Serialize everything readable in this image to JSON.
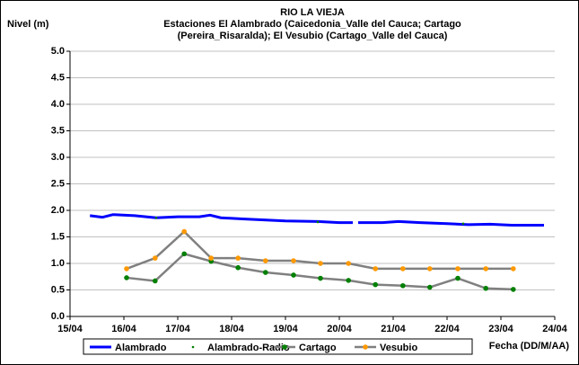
{
  "chart_data": {
    "type": "line",
    "title": "RIO LA VIEJA",
    "subtitle": [
      "Estaciones El Alambrado (Caicedonia_Valle del Cauca; Cartago",
      "(Pereira_Risaralda);  El Vesubio (Cartago_Valle del Cauca)"
    ],
    "y_label": "Nivel (m)",
    "x_label": "Fecha (DD/M/AA)",
    "xlim": [
      15,
      24
    ],
    "xticks": [
      {
        "value": 15,
        "label": "15/04"
      },
      {
        "value": 16,
        "label": "16/04"
      },
      {
        "value": 17,
        "label": "17/04"
      },
      {
        "value": 18,
        "label": "18/04"
      },
      {
        "value": 19,
        "label": "19/04"
      },
      {
        "value": 20,
        "label": "20/04"
      },
      {
        "value": 21,
        "label": "21/04"
      },
      {
        "value": 22,
        "label": "22/04"
      },
      {
        "value": 23,
        "label": "23/04"
      },
      {
        "value": 24,
        "label": "24/04"
      }
    ],
    "ylim": [
      0,
      5
    ],
    "yticks": [
      {
        "value": 0,
        "label": "0.0"
      },
      0.5,
      {
        "value": 1,
        "label": "1.0"
      },
      1.5,
      {
        "value": 2,
        "label": "2.0"
      },
      2.5,
      {
        "value": 3,
        "label": "3.0"
      },
      3.5,
      {
        "value": 4,
        "label": "4.0"
      },
      4.5,
      {
        "value": 5,
        "label": "5.0"
      }
    ],
    "grid": true,
    "legend": "bottom",
    "series": [
      {
        "name": "Alambrado",
        "color": "#0000ff",
        "line": true,
        "marker": false,
        "x": [
          15.37,
          15.6,
          15.8,
          16.2,
          16.6,
          17.0,
          17.4,
          17.6,
          17.8,
          18.2,
          18.6,
          19.0,
          19.6,
          20.0,
          20.25,
          20.3,
          20.35,
          20.8,
          21.1,
          21.5,
          22.0,
          22.4,
          22.8,
          23.2,
          23.8
        ],
        "values": [
          1.9,
          1.87,
          1.92,
          1.9,
          1.86,
          1.88,
          1.88,
          1.91,
          1.86,
          1.84,
          1.82,
          1.8,
          1.79,
          1.77,
          1.77,
          null,
          1.77,
          1.77,
          1.79,
          1.77,
          1.75,
          1.73,
          1.74,
          1.72,
          1.72
        ]
      },
      {
        "name": "Alambrado-Radio",
        "color": "#008000",
        "line": false,
        "marker": true,
        "x": [
          16.6,
          19.6,
          22.3
        ],
        "values": [
          1.86,
          1.78,
          1.75
        ]
      },
      {
        "name": "Cartago",
        "color": "#808080",
        "marker_color": "#008000",
        "line": true,
        "marker": true,
        "x": [
          16.05,
          16.58,
          17.12,
          17.62,
          18.12,
          18.63,
          19.15,
          19.65,
          20.17,
          20.67,
          21.18,
          21.68,
          22.2,
          22.72,
          23.23
        ],
        "values": [
          0.73,
          0.67,
          1.18,
          1.04,
          0.92,
          0.83,
          0.78,
          0.72,
          0.68,
          0.6,
          0.58,
          0.55,
          0.72,
          0.53,
          0.51
        ]
      },
      {
        "name": "Vesubio",
        "color": "#808080",
        "marker_color": "#ff9900",
        "line": true,
        "marker": true,
        "x": [
          16.05,
          16.58,
          17.12,
          17.62,
          18.12,
          18.63,
          19.15,
          19.65,
          20.17,
          20.67,
          21.18,
          21.68,
          22.2,
          22.72,
          23.23
        ],
        "values": [
          0.9,
          1.1,
          1.6,
          1.1,
          1.1,
          1.05,
          1.05,
          1.0,
          1.0,
          0.9,
          0.9,
          0.9,
          0.9,
          0.9,
          0.9
        ]
      }
    ]
  }
}
